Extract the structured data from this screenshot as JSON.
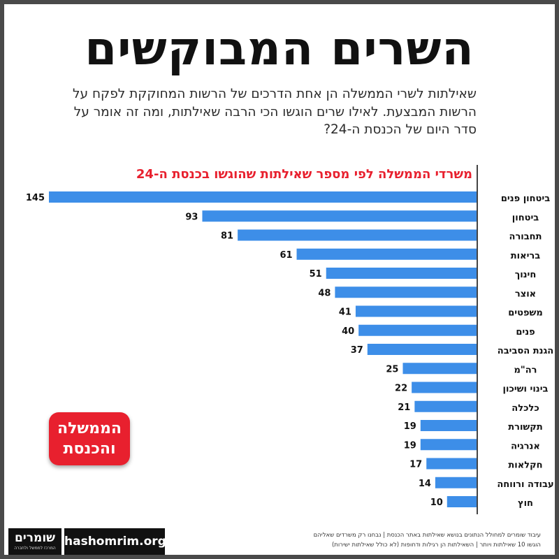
{
  "title": "השרים המבוקשים",
  "subtitle": "שאילתות לשרי הממשלה הן אחת הדרכים של הרשות המחוקקת לפקח על הרשות המבצעת. לאילו שרים הוגשו הכי הרבה שאילתות, ומה זה אומר על סדר היום של הכנסת ה-24?",
  "badge": {
    "line1": "הממשלה",
    "line2": "והכנסת"
  },
  "footer": {
    "logo_text": "שומרים",
    "logo_sub": "המרכז לממשל ולחברה",
    "site": "hashomrim.org",
    "note_line1": "עיבוד שומרים למחולל הנתונים בנושא שאילתות באתר הכנסת | נבחנו רק משרדים שאליהם",
    "note_line2": "הוגשו 10 שאילתות ויותר | השאילתות הן רגילות ודחופות (לא כולל שאילתות ישירות)"
  },
  "colors": {
    "bar": "#3d8ee8",
    "accent": "#e8202e",
    "text": "#111111"
  },
  "chart_data": {
    "type": "bar",
    "orientation": "horizontal",
    "title": "משרדי הממשלה לפי מספר שאילתות שהוגשו בכנסת ה-24",
    "categories": [
      "ביטחון פנים",
      "ביטחון",
      "תחבורה",
      "בריאות",
      "חינוך",
      "אוצר",
      "משפטים",
      "פנים",
      "הגנת הסביבה",
      "רה\"מ",
      "בינוי ושיכון",
      "כלכלה",
      "תקשורת",
      "אנרגיה",
      "חקלאות",
      "עבודה ורווחה",
      "חוץ"
    ],
    "values": [
      145,
      93,
      81,
      61,
      51,
      48,
      41,
      40,
      37,
      25,
      22,
      21,
      19,
      19,
      17,
      14,
      10
    ],
    "xlim": [
      0,
      145
    ],
    "data_labels": true,
    "grid": false
  }
}
